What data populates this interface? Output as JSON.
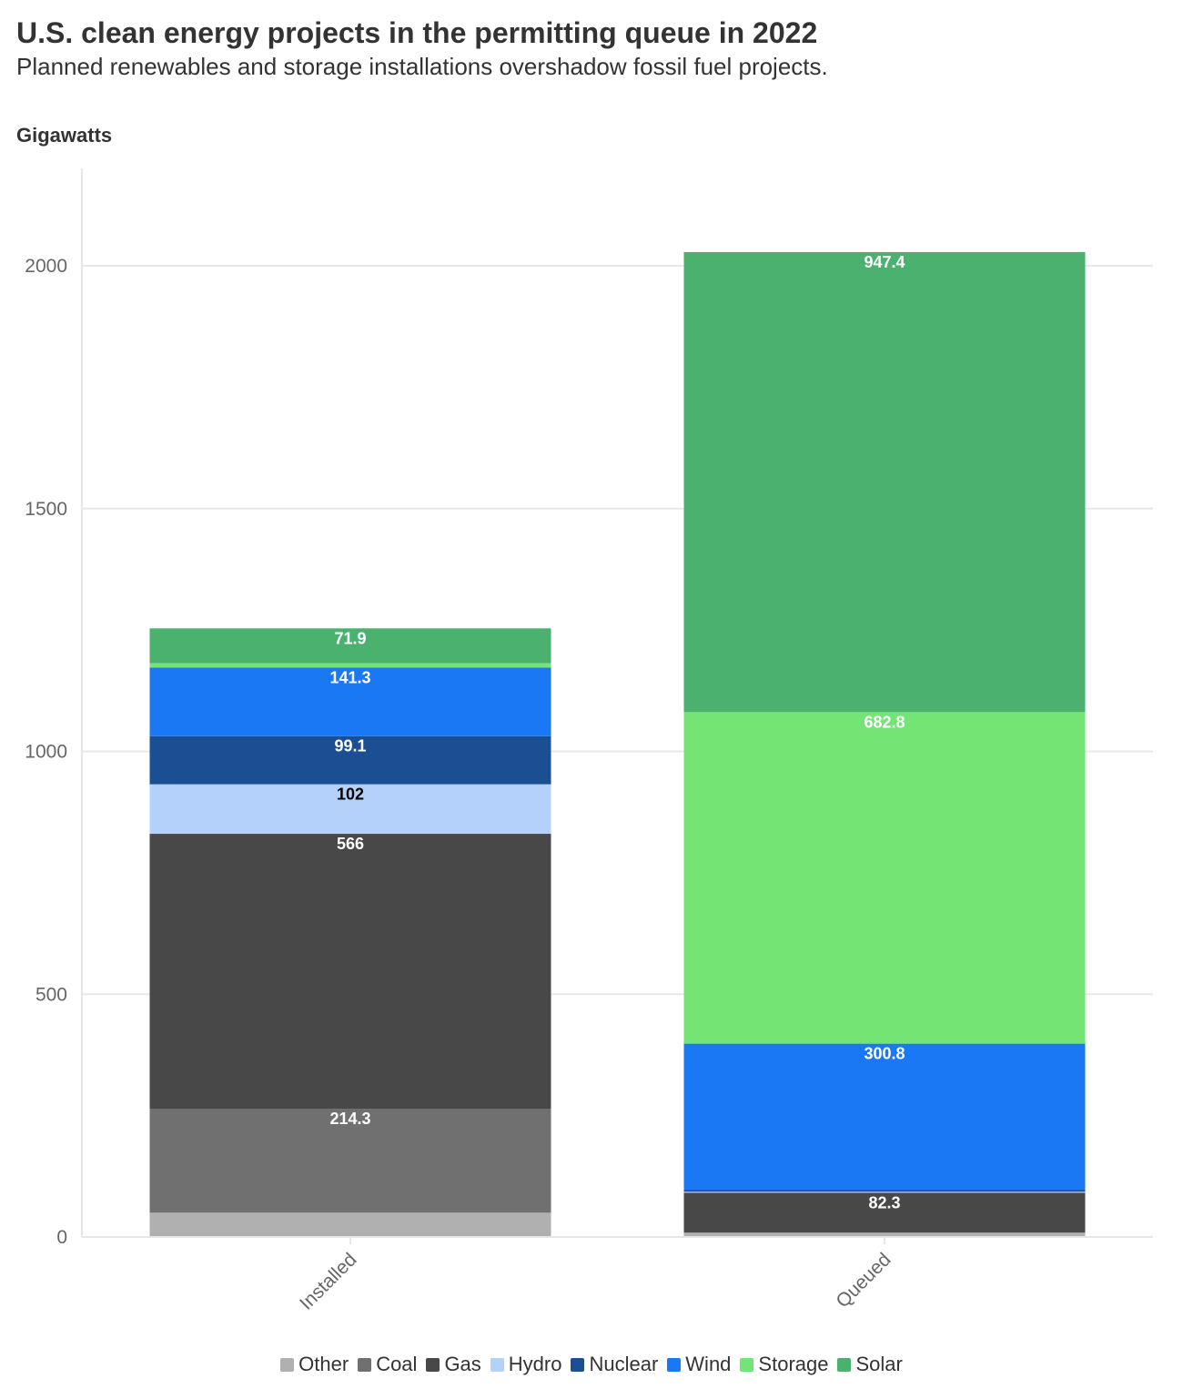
{
  "chart_data": {
    "type": "bar",
    "stacked": true,
    "title": "U.S. clean energy projects in the permitting queue in 2022",
    "subtitle": "Planned renewables and storage installations overshadow fossil fuel projects.",
    "ylabel": "Gigawatts",
    "xlabel": "",
    "ylim": [
      0,
      2200
    ],
    "yticks": [
      0,
      500,
      1000,
      1500,
      2000
    ],
    "grid": true,
    "legend": "bottom",
    "categories": [
      "Installed",
      "Queued"
    ],
    "series": [
      {
        "name": "Other",
        "color": "#b0b0b0",
        "values": [
          50,
          9
        ],
        "labels": [
          "",
          ""
        ],
        "label_color": "#ffffff"
      },
      {
        "name": "Coal",
        "color": "#707070",
        "values": [
          214.3,
          0
        ],
        "labels": [
          "214.3",
          ""
        ],
        "label_color": "#ffffff"
      },
      {
        "name": "Gas",
        "color": "#484848",
        "values": [
          566,
          82.3
        ],
        "labels": [
          "566",
          "82.3"
        ],
        "label_color": "#ffffff"
      },
      {
        "name": "Hydro",
        "color": "#b3d1fa",
        "values": [
          102,
          2
        ],
        "labels": [
          "102",
          ""
        ],
        "label_color": "#000000"
      },
      {
        "name": "Nuclear",
        "color": "#1a4f94",
        "values": [
          99.1,
          4
        ],
        "labels": [
          "99.1",
          ""
        ],
        "label_color": "#ffffff"
      },
      {
        "name": "Wind",
        "color": "#1a78f5",
        "values": [
          141.3,
          300.8
        ],
        "labels": [
          "141.3",
          "300.8"
        ],
        "label_color": "#ffffff"
      },
      {
        "name": "Storage",
        "color": "#74e574",
        "values": [
          8.8,
          682.8
        ],
        "labels": [
          "",
          "682.8"
        ],
        "label_color": "#ffffff"
      },
      {
        "name": "Solar",
        "color": "#4ab26e",
        "values": [
          71.9,
          947.4
        ],
        "labels": [
          "71.9",
          "947.4"
        ],
        "label_color": "#ffffff"
      }
    ]
  }
}
